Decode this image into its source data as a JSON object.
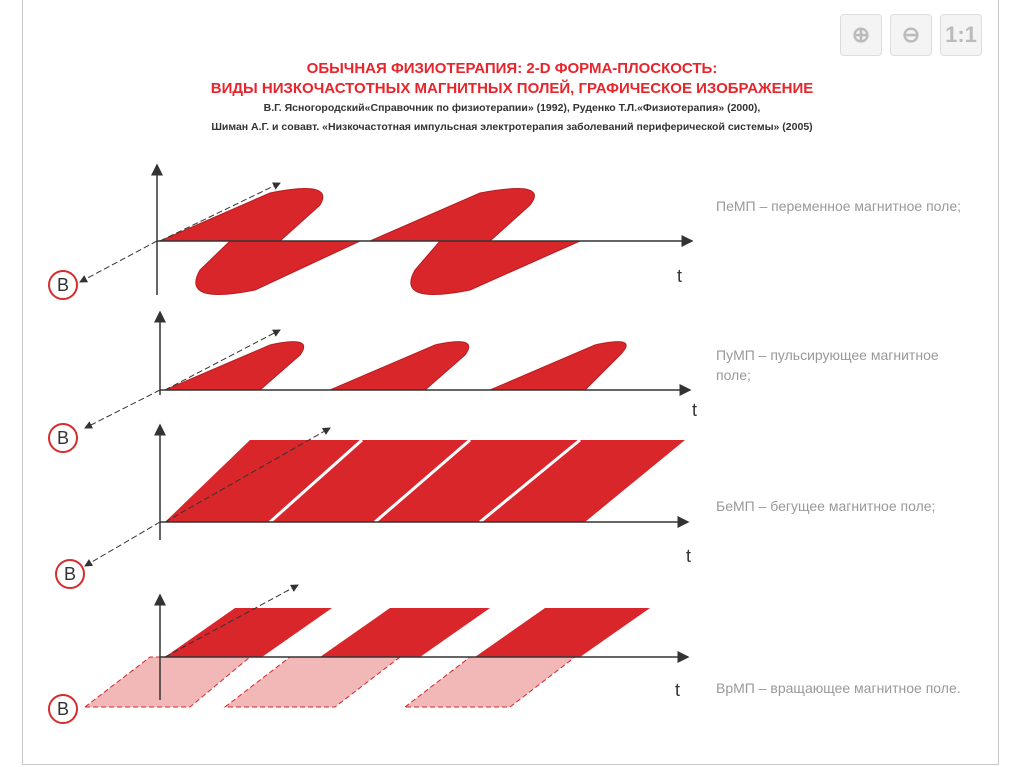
{
  "toolbar": {
    "zoom_in_icon": "magnifier-plus-icon",
    "zoom_out_icon": "magnifier-minus-icon",
    "actual_size_label": "1:1"
  },
  "title": {
    "line1": "ОБЫЧНАЯ ФИЗИОТЕРАПИЯ: 2-D ФОРМА-ПЛОСКОСТЬ:",
    "line2": "ВИДЫ НИЗКОЧАСТОТНЫХ МАГНИТНЫХ ПОЛЕЙ, ГРАФИЧЕСКОЕ ИЗОБРАЖЕНИЕ"
  },
  "sources": {
    "line1": "В.Г. Ясногородский«Справочник по физиотерапии» (1992), Руденко Т.Л.«Физиотерапия» (2000),",
    "line2": "Шиман А.Г. и совавт. «Низкочастотная импульсная электротерапия заболеваний периферической системы» (2005)"
  },
  "panels": [
    {
      "axis_t": "t",
      "axis_b": "B",
      "label": "ПеМП – переменное магнитное поле;"
    },
    {
      "axis_t": "t",
      "axis_b": "B",
      "label": "ПуМП – пульсирующее магнитное поле;"
    },
    {
      "axis_t": "t",
      "axis_b": "B",
      "label": "БеМП – бегущее магнитное поле;"
    },
    {
      "axis_t": "t",
      "axis_b": "B",
      "label": "ВрМП – вращающее магнитное поле."
    }
  ],
  "colors": {
    "field": "#d9262b",
    "field_light": "#f2b8b8",
    "title": "#e8242c"
  }
}
